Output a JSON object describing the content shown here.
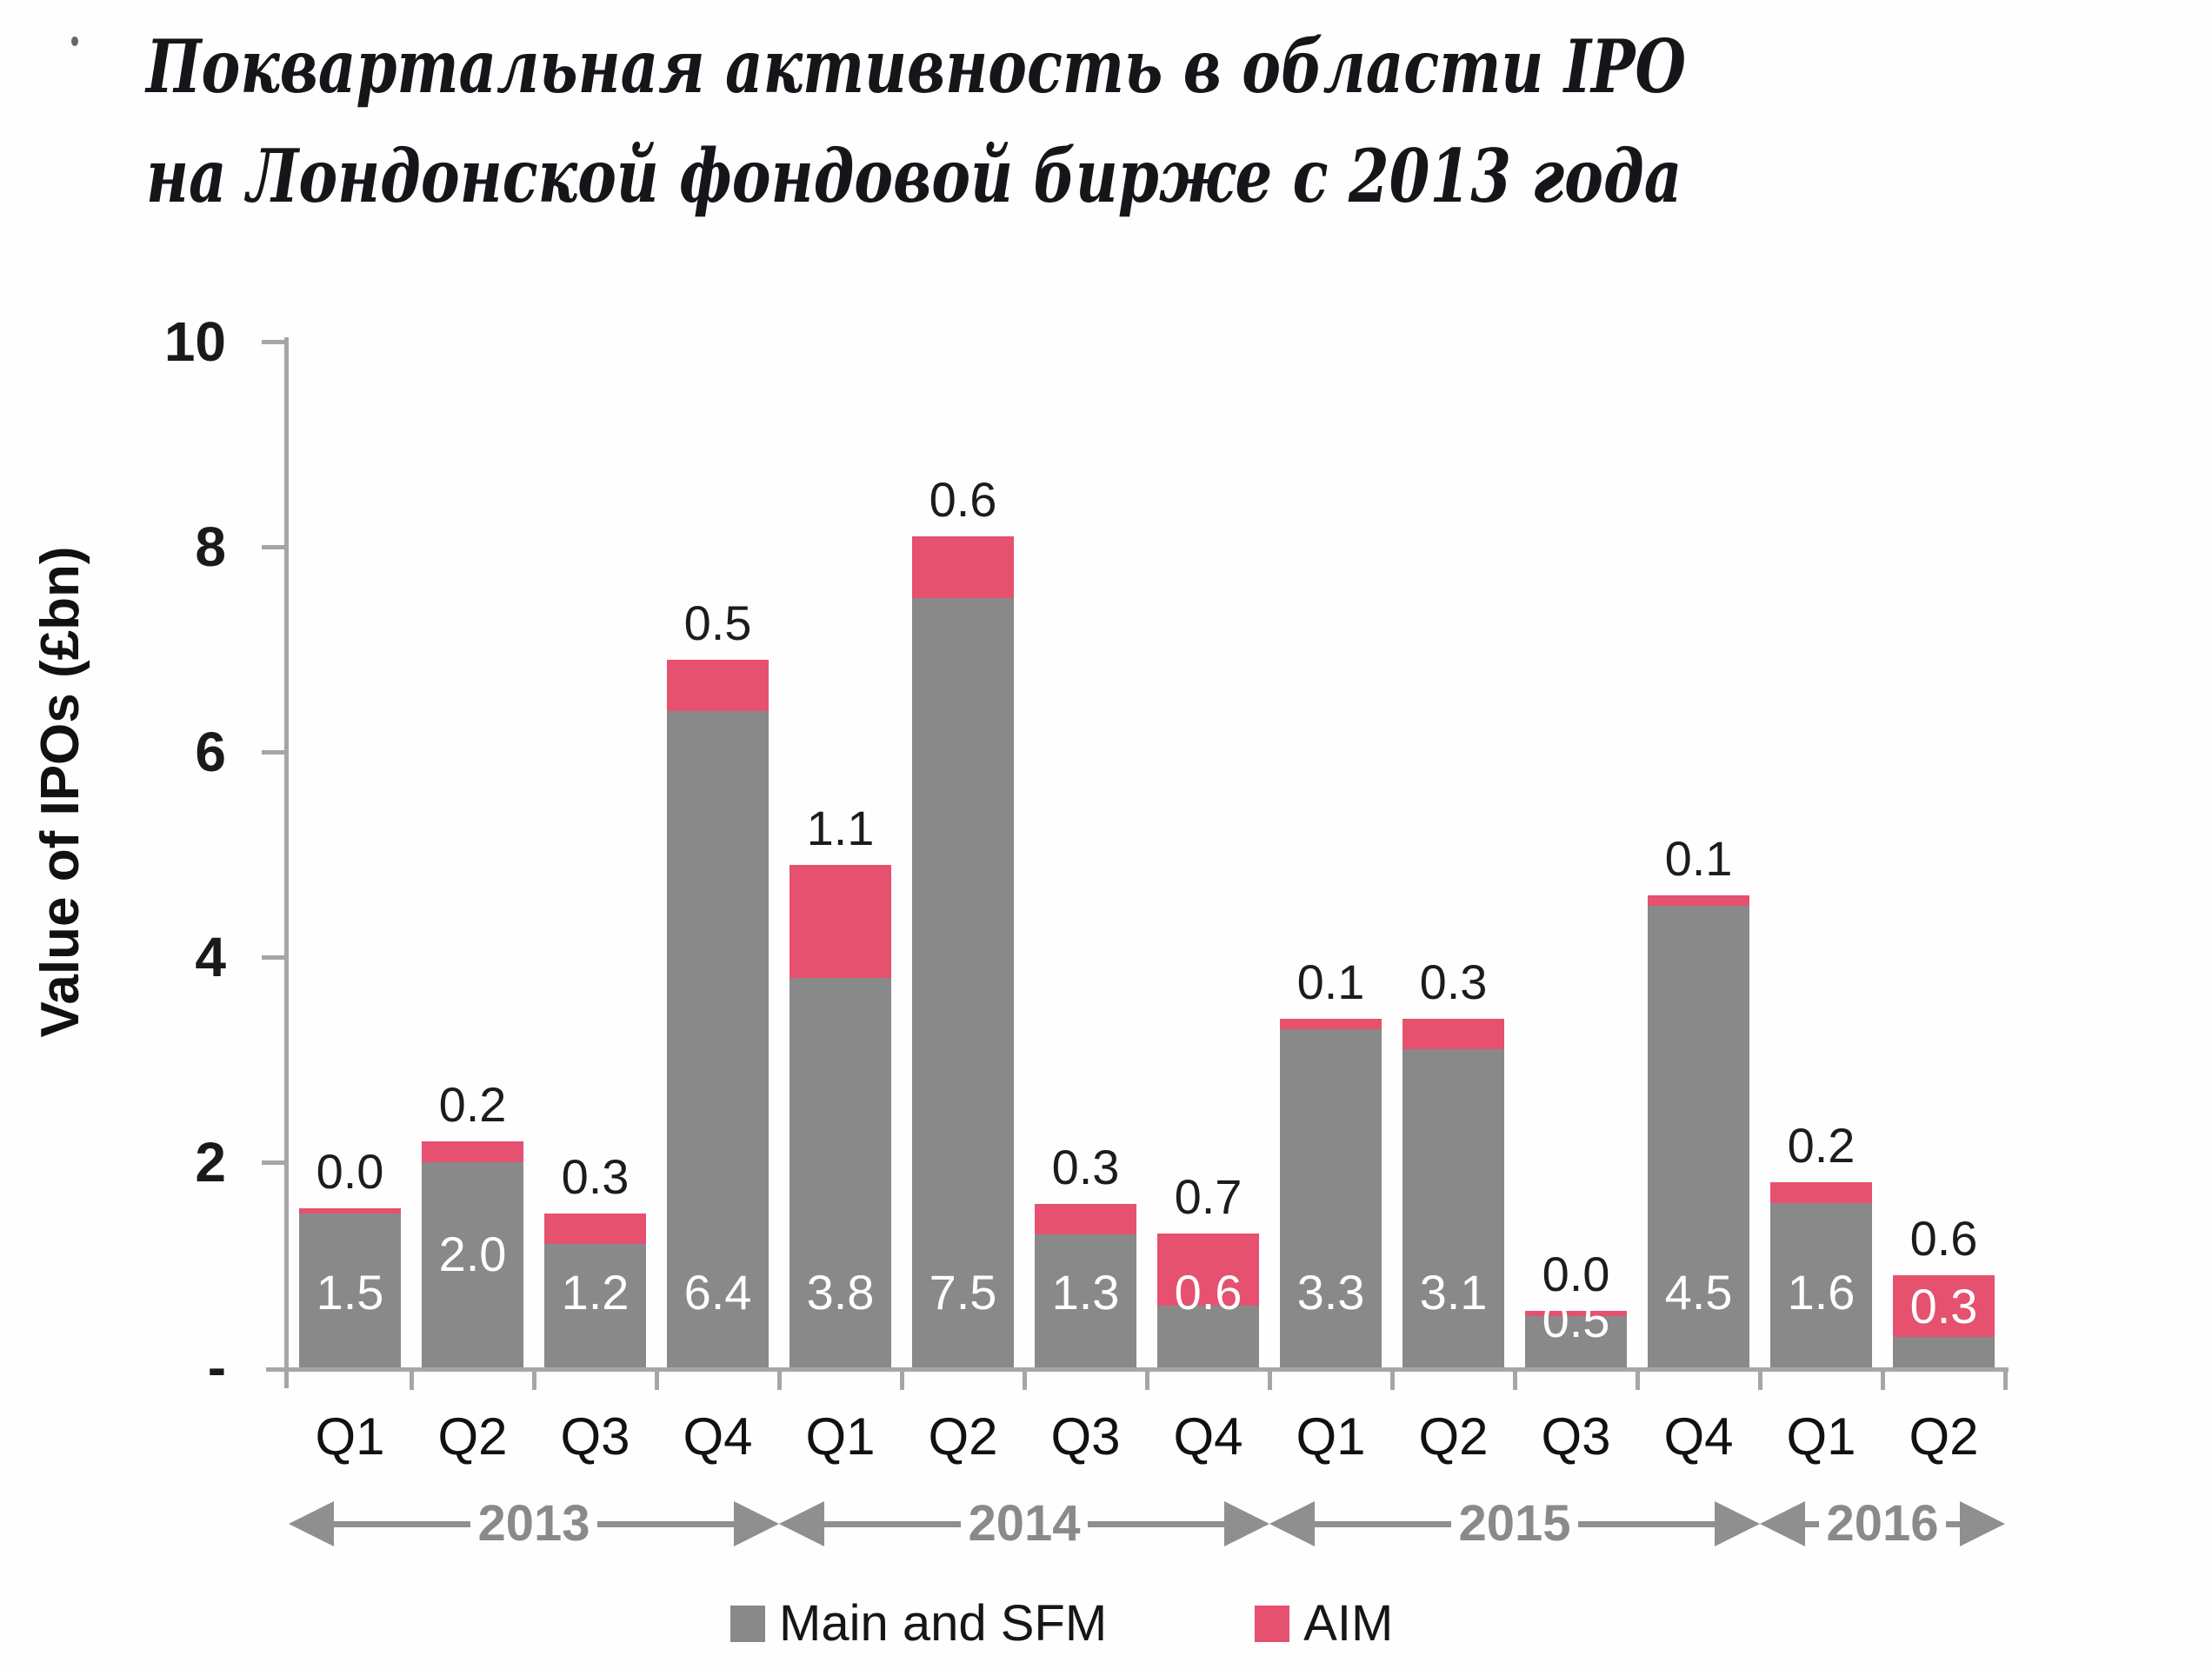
{
  "title": {
    "line1": "Поквартальная активность в области IPO",
    "line2": "на Лондонской фондовой бирже с 2013 года"
  },
  "y_axis": {
    "label": "Value of IPOs (£bn)",
    "ticks": [
      {
        "label": "10",
        "value": 10
      },
      {
        "label": "8",
        "value": 8
      },
      {
        "label": "6",
        "value": 6
      },
      {
        "label": "4",
        "value": 4
      },
      {
        "label": "2",
        "value": 2
      },
      {
        "label": "-",
        "value": 0
      }
    ]
  },
  "colors": {
    "main_sfm": "#898989",
    "aim": "#e5516f",
    "axis": "#a6a6a6",
    "year_arrow": "#8f8f8f",
    "title_text": "#16161a",
    "background": "#fefefe"
  },
  "legend": {
    "items": [
      {
        "label": "Main and SFM",
        "color": "#898989"
      },
      {
        "label": "AIM",
        "color": "#e5516f"
      }
    ]
  },
  "chart_data": {
    "type": "bar",
    "stacked": true,
    "title": "Поквартальная активность в области IPO на Лондонской фондовой бирже с 2013 года",
    "ylabel": "Value of IPOs (£bn)",
    "ylim": [
      0,
      10
    ],
    "y_ticks": [
      0,
      2,
      4,
      6,
      8,
      10
    ],
    "grid": false,
    "legend_position": "bottom",
    "categories": [
      "Q1",
      "Q2",
      "Q3",
      "Q4",
      "Q1",
      "Q2",
      "Q3",
      "Q4",
      "Q1",
      "Q2",
      "Q3",
      "Q4",
      "Q1",
      "Q2"
    ],
    "year_groups": [
      {
        "label": "2013",
        "count": 4
      },
      {
        "label": "2014",
        "count": 4
      },
      {
        "label": "2015",
        "count": 4
      },
      {
        "label": "2016",
        "count": 2
      }
    ],
    "series": [
      {
        "name": "Main and SFM",
        "color": "#898989",
        "values": [
          1.5,
          2.0,
          1.2,
          6.4,
          3.8,
          7.5,
          1.3,
          0.6,
          3.3,
          3.1,
          0.5,
          4.5,
          1.6,
          0.3
        ]
      },
      {
        "name": "AIM",
        "color": "#e5516f",
        "values": [
          0.0,
          0.2,
          0.3,
          0.5,
          1.1,
          0.6,
          0.3,
          0.7,
          0.1,
          0.3,
          0.0,
          0.1,
          0.2,
          0.6
        ]
      }
    ]
  }
}
